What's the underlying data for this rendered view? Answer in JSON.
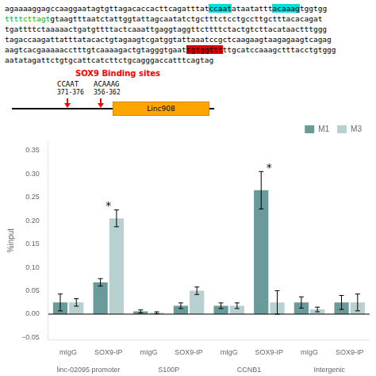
{
  "chart_data": {
    "type": "bar",
    "sequence": [
      [
        {
          "text": "agaaaaggagccaaggaatagtgttagacaccacttcagatttat"
        },
        {
          "text": "ccaat",
          "highlight": "#00e0e0"
        },
        {
          "text": "ataatattt"
        },
        {
          "text": "acaaag",
          "highlight": "#00e0e0"
        },
        {
          "text": "tggtgg"
        }
      ],
      [
        {
          "text": "ttttcttagt",
          "color": "#00bb00"
        },
        {
          "text": "gtaagtttaatctattggtattagcaatatctgctttctcctgccttgctttacacagat"
        }
      ],
      [
        {
          "text": "tgattttctaaaaactgatgttttactcaaattgaggtaggttcttttctactgtcttacataactttggg"
        }
      ],
      [
        {
          "text": "tagaccaagattatttatacactgtagaagtcgatggtattaaatccgctcaagaagtaagagaagtcagag"
        }
      ],
      [
        {
          "text": "aagtcacgaaaaacctttgtcaaaagactgtagggtgaat"
        },
        {
          "text": "tgtggttt",
          "highlight": "#dd0000"
        },
        {
          "text": "ttgcatccaaagctttacctgtggg"
        }
      ],
      [
        {
          "text": "aatatagattctgtgcattcatcttctgcagggaccatttcagtag"
        }
      ]
    ],
    "schematic": [
      {
        "text": "SOX9 Binding sites",
        "color": "red"
      },
      {
        "text": "CCAAT"
      },
      {
        "text": "371-376"
      },
      {
        "text": "ACAAAG"
      },
      {
        "text": "356-362"
      },
      {
        "text": "Linc908",
        "color": "#FFA500"
      }
    ],
    "categories": [
      "mIgG",
      "SOX9-IP",
      "mIgG",
      "SOX9-IP",
      "mIgG",
      "SOX9-IP",
      "mIgG",
      "SOX9-IP"
    ],
    "groups": [
      "linc-02095 promoter",
      "S100P",
      "CCNB1",
      "Intergenic"
    ],
    "series": [
      {
        "name": "M1",
        "color": "#6a9a9a",
        "values": [
          0.025,
          0.068,
          0.006,
          0.018,
          0.018,
          0.265,
          0.025,
          0.025
        ],
        "errors": [
          0.018,
          0.008,
          0.003,
          0.006,
          0.006,
          0.04,
          0.012,
          0.015
        ]
      },
      {
        "name": "M3",
        "color": "#b8d0d0",
        "values": [
          0.025,
          0.205,
          0.003,
          0.05,
          0.018,
          0.025,
          0.01,
          0.025
        ],
        "errors": [
          0.008,
          0.018,
          0.002,
          0.008,
          0.006,
          0.025,
          0.005,
          0.018
        ]
      }
    ],
    "annotations": [
      {
        "text": "*",
        "index": 1
      },
      {
        "text": "*",
        "index": 5
      }
    ],
    "ylabel": "%input",
    "ylim": [
      -0.055,
      0.37
    ],
    "yticks": [
      {
        "value": -0.05,
        "label": "−0.05"
      },
      {
        "value": 0.0,
        "label": "0.00"
      },
      0.05,
      {
        "value": 0.1,
        "label": "0.10"
      },
      0.15,
      {
        "value": 0.2,
        "label": "0.20"
      },
      0.25,
      {
        "value": 0.3,
        "label": "0.30"
      },
      0.35
    ],
    "legend": "upper right",
    "grid": false
  }
}
